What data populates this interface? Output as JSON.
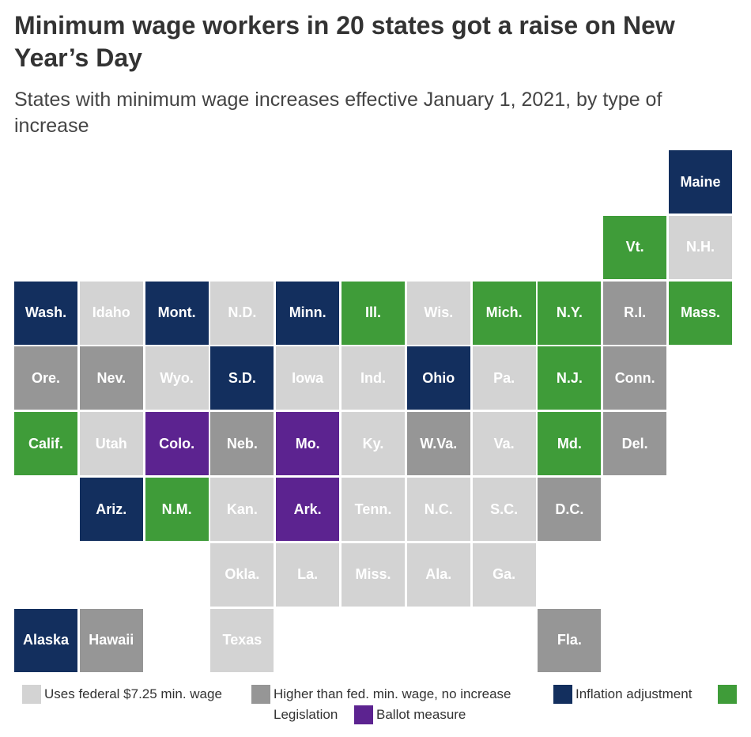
{
  "title": "Minimum wage workers in 20 states got a raise on New Year’s Day",
  "subtitle": "States with minimum wage increases effective January 1, 2021, by type of increase",
  "colors": {
    "federal": "#d3d3d3",
    "higher": "#969696",
    "inflation": "#132f5e",
    "legislation": "#3f9c39",
    "ballot": "#5c2390"
  },
  "legend": [
    {
      "category": "federal",
      "label": "Uses federal $7.25 min. wage"
    },
    {
      "category": "higher",
      "label": "Higher than fed. min. wage, no increase"
    },
    {
      "category": "inflation",
      "label": "Inflation adjustment"
    },
    {
      "category": "legislation",
      "label": "Legislation"
    },
    {
      "category": "ballot",
      "label": "Ballot measure"
    }
  ],
  "states": [
    {
      "abbr": "Maine",
      "category": "inflation",
      "row": 0,
      "col": 10
    },
    {
      "abbr": "Vt.",
      "category": "legislation",
      "row": 1,
      "col": 9
    },
    {
      "abbr": "N.H.",
      "category": "federal",
      "row": 1,
      "col": 10
    },
    {
      "abbr": "Wash.",
      "category": "inflation",
      "row": 2,
      "col": 0
    },
    {
      "abbr": "Idaho",
      "category": "federal",
      "row": 2,
      "col": 1
    },
    {
      "abbr": "Mont.",
      "category": "inflation",
      "row": 2,
      "col": 2
    },
    {
      "abbr": "N.D.",
      "category": "federal",
      "row": 2,
      "col": 3
    },
    {
      "abbr": "Minn.",
      "category": "inflation",
      "row": 2,
      "col": 4
    },
    {
      "abbr": "Ill.",
      "category": "legislation",
      "row": 2,
      "col": 5
    },
    {
      "abbr": "Wis.",
      "category": "federal",
      "row": 2,
      "col": 6
    },
    {
      "abbr": "Mich.",
      "category": "legislation",
      "row": 2,
      "col": 7
    },
    {
      "abbr": "N.Y.",
      "category": "legislation",
      "row": 2,
      "col": 8
    },
    {
      "abbr": "R.I.",
      "category": "higher",
      "row": 2,
      "col": 9
    },
    {
      "abbr": "Mass.",
      "category": "legislation",
      "row": 2,
      "col": 10
    },
    {
      "abbr": "Ore.",
      "category": "higher",
      "row": 3,
      "col": 0
    },
    {
      "abbr": "Nev.",
      "category": "higher",
      "row": 3,
      "col": 1
    },
    {
      "abbr": "Wyo.",
      "category": "federal",
      "row": 3,
      "col": 2
    },
    {
      "abbr": "S.D.",
      "category": "inflation",
      "row": 3,
      "col": 3
    },
    {
      "abbr": "Iowa",
      "category": "federal",
      "row": 3,
      "col": 4
    },
    {
      "abbr": "Ind.",
      "category": "federal",
      "row": 3,
      "col": 5
    },
    {
      "abbr": "Ohio",
      "category": "inflation",
      "row": 3,
      "col": 6
    },
    {
      "abbr": "Pa.",
      "category": "federal",
      "row": 3,
      "col": 7
    },
    {
      "abbr": "N.J.",
      "category": "legislation",
      "row": 3,
      "col": 8
    },
    {
      "abbr": "Conn.",
      "category": "higher",
      "row": 3,
      "col": 9
    },
    {
      "abbr": "Calif.",
      "category": "legislation",
      "row": 4,
      "col": 0
    },
    {
      "abbr": "Utah",
      "category": "federal",
      "row": 4,
      "col": 1
    },
    {
      "abbr": "Colo.",
      "category": "ballot",
      "row": 4,
      "col": 2
    },
    {
      "abbr": "Neb.",
      "category": "higher",
      "row": 4,
      "col": 3
    },
    {
      "abbr": "Mo.",
      "category": "ballot",
      "row": 4,
      "col": 4
    },
    {
      "abbr": "Ky.",
      "category": "federal",
      "row": 4,
      "col": 5
    },
    {
      "abbr": "W.Va.",
      "category": "higher",
      "row": 4,
      "col": 6
    },
    {
      "abbr": "Va.",
      "category": "federal",
      "row": 4,
      "col": 7
    },
    {
      "abbr": "Md.",
      "category": "legislation",
      "row": 4,
      "col": 8
    },
    {
      "abbr": "Del.",
      "category": "higher",
      "row": 4,
      "col": 9
    },
    {
      "abbr": "Ariz.",
      "category": "inflation",
      "row": 5,
      "col": 1
    },
    {
      "abbr": "N.M.",
      "category": "legislation",
      "row": 5,
      "col": 2
    },
    {
      "abbr": "Kan.",
      "category": "federal",
      "row": 5,
      "col": 3
    },
    {
      "abbr": "Ark.",
      "category": "ballot",
      "row": 5,
      "col": 4
    },
    {
      "abbr": "Tenn.",
      "category": "federal",
      "row": 5,
      "col": 5
    },
    {
      "abbr": "N.C.",
      "category": "federal",
      "row": 5,
      "col": 6
    },
    {
      "abbr": "S.C.",
      "category": "federal",
      "row": 5,
      "col": 7
    },
    {
      "abbr": "D.C.",
      "category": "higher",
      "row": 5,
      "col": 8
    },
    {
      "abbr": "Okla.",
      "category": "federal",
      "row": 6,
      "col": 3
    },
    {
      "abbr": "La.",
      "category": "federal",
      "row": 6,
      "col": 4
    },
    {
      "abbr": "Miss.",
      "category": "federal",
      "row": 6,
      "col": 5
    },
    {
      "abbr": "Ala.",
      "category": "federal",
      "row": 6,
      "col": 6
    },
    {
      "abbr": "Ga.",
      "category": "federal",
      "row": 6,
      "col": 7
    },
    {
      "abbr": "Alaska",
      "category": "inflation",
      "row": 7,
      "col": 0
    },
    {
      "abbr": "Hawaii",
      "category": "higher",
      "row": 7,
      "col": 1
    },
    {
      "abbr": "Texas",
      "category": "federal",
      "row": 7,
      "col": 3
    },
    {
      "abbr": "Fla.",
      "category": "higher",
      "row": 7,
      "col": 8
    }
  ]
}
